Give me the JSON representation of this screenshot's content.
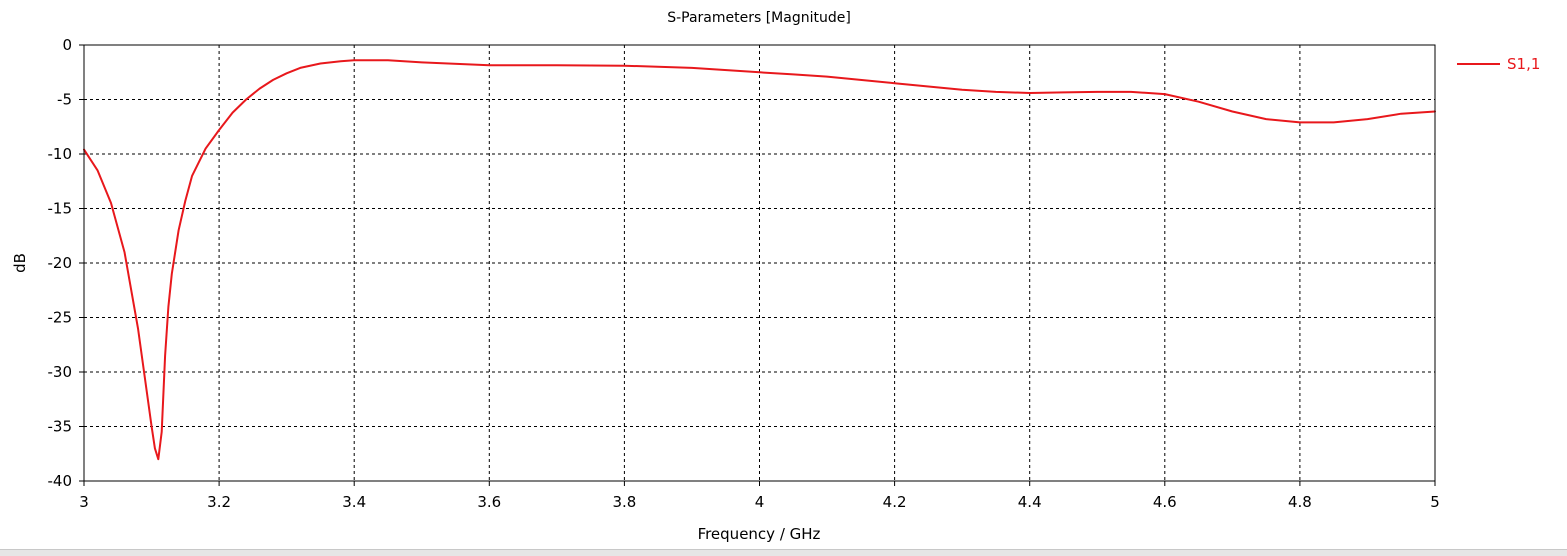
{
  "chart_data": {
    "type": "line",
    "title": "S-Parameters [Magnitude]",
    "xlabel": "Frequency / GHz",
    "ylabel": "dB",
    "xlim": [
      3,
      5
    ],
    "ylim": [
      -40,
      0
    ],
    "x_ticks": [
      3,
      3.2,
      3.4,
      3.6,
      3.8,
      4,
      4.2,
      4.4,
      4.6,
      4.8,
      5
    ],
    "x_tick_labels": [
      "3",
      "3.2",
      "3.4",
      "3.6",
      "3.8",
      "4",
      "4.2",
      "4.4",
      "4.6",
      "4.8",
      "5"
    ],
    "y_ticks": [
      0,
      -5,
      -10,
      -15,
      -20,
      -25,
      -30,
      -35,
      -40
    ],
    "y_tick_labels": [
      "0",
      "-5",
      "-10",
      "-15",
      "-20",
      "-25",
      "-30",
      "-35",
      "-40"
    ],
    "grid": true,
    "legend_position": "right",
    "series": [
      {
        "name": "S1,1",
        "color": "#e8181c",
        "x": [
          3.0,
          3.02,
          3.04,
          3.06,
          3.08,
          3.09,
          3.1,
          3.105,
          3.11,
          3.115,
          3.12,
          3.125,
          3.13,
          3.14,
          3.15,
          3.16,
          3.18,
          3.2,
          3.22,
          3.24,
          3.26,
          3.28,
          3.3,
          3.32,
          3.35,
          3.38,
          3.4,
          3.45,
          3.5,
          3.6,
          3.7,
          3.8,
          3.9,
          4.0,
          4.05,
          4.1,
          4.2,
          4.3,
          4.35,
          4.4,
          4.45,
          4.5,
          4.55,
          4.6,
          4.65,
          4.7,
          4.75,
          4.8,
          4.85,
          4.9,
          4.95,
          5.0
        ],
        "y": [
          -9.6,
          -11.5,
          -14.5,
          -19.0,
          -26.0,
          -30.5,
          -35.0,
          -37.0,
          -38.0,
          -35.5,
          -28.5,
          -24.0,
          -21.0,
          -17.0,
          -14.3,
          -12.0,
          -9.5,
          -7.8,
          -6.2,
          -5.0,
          -4.0,
          -3.2,
          -2.6,
          -2.1,
          -1.7,
          -1.5,
          -1.4,
          -1.4,
          -1.6,
          -1.85,
          -1.85,
          -1.9,
          -2.1,
          -2.5,
          -2.7,
          -2.9,
          -3.5,
          -4.1,
          -4.3,
          -4.4,
          -4.35,
          -4.3,
          -4.3,
          -4.5,
          -5.2,
          -6.1,
          -6.8,
          -7.1,
          -7.1,
          -6.8,
          -6.3,
          -6.1
        ]
      }
    ]
  }
}
